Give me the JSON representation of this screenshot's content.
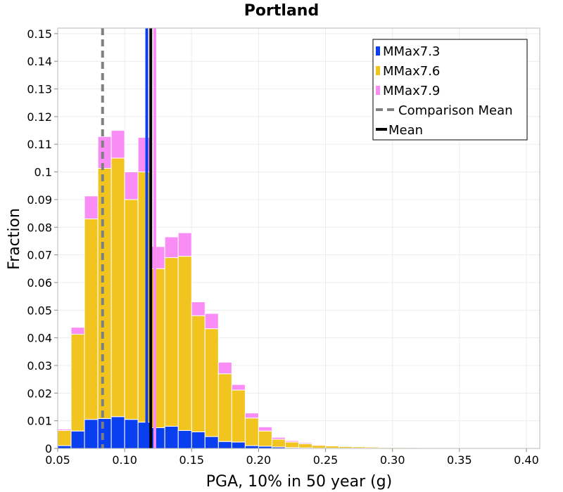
{
  "chart_data": {
    "type": "bar",
    "stacked": true,
    "title": "Portland",
    "xlabel": "PGA, 10% in 50 year (g)",
    "ylabel": "Fraction",
    "xlim": [
      0.05,
      0.41
    ],
    "ylim": [
      0,
      0.152
    ],
    "bin_width": 0.01,
    "x_ticks": [
      0.05,
      0.1,
      0.15,
      0.2,
      0.25,
      0.3,
      0.35,
      0.4
    ],
    "x_tick_labels": [
      "0.05",
      "0.10",
      "0.15",
      "0.20",
      "0.25",
      "0.30",
      "0.35",
      "0.40"
    ],
    "y_ticks": [
      0,
      0.01,
      0.02,
      0.03,
      0.04,
      0.05,
      0.06,
      0.07,
      0.08,
      0.09,
      0.1,
      0.11,
      0.12,
      0.13,
      0.14,
      0.15
    ],
    "y_tick_labels": [
      "0",
      "0.01",
      "0.02",
      "0.03",
      "0.04",
      "0.05",
      "0.06",
      "0.07",
      "0.08",
      "0.09",
      "0.1",
      "0.11",
      "0.12",
      "0.13",
      "0.14",
      "0.15"
    ],
    "grid": true,
    "legend_position": "top-right",
    "bins_x": [
      0.05,
      0.06,
      0.07,
      0.08,
      0.09,
      0.1,
      0.11,
      0.12,
      0.13,
      0.14,
      0.15,
      0.16,
      0.17,
      0.18,
      0.19,
      0.2,
      0.21,
      0.22,
      0.23,
      0.24,
      0.25,
      0.26,
      0.27,
      0.28,
      0.29,
      0.3,
      0.31,
      0.32,
      0.33,
      0.34,
      0.35,
      0.36,
      0.37,
      0.38,
      0.39
    ],
    "series": [
      {
        "name": "MMax7.3",
        "color": "#0a3ff0",
        "values": [
          0.001,
          0.0063,
          0.0105,
          0.0108,
          0.0115,
          0.0105,
          0.0095,
          0.0075,
          0.008,
          0.0065,
          0.006,
          0.0043,
          0.0025,
          0.0023,
          0.001,
          0.0008,
          0.0005,
          0.0003,
          0.0002,
          0.0001,
          0.0001,
          0.0001,
          0.0001,
          0.0001,
          0.0001,
          0.0001,
          0,
          0,
          0,
          0,
          0,
          0,
          0,
          0,
          0
        ]
      },
      {
        "name": "MMax7.6",
        "color": "#f2c41f",
        "values": [
          0.0055,
          0.035,
          0.0725,
          0.0905,
          0.0935,
          0.0795,
          0.0905,
          0.0575,
          0.061,
          0.063,
          0.042,
          0.039,
          0.0245,
          0.0188,
          0.01,
          0.0055,
          0.0028,
          0.002,
          0.0015,
          0.001,
          0.0008,
          0.0006,
          0.0005,
          0.0004,
          0.0003,
          0.0003,
          0.0003,
          0.0002,
          0.0002,
          0,
          0,
          0,
          0.0001,
          0.0001,
          0.0001
        ]
      },
      {
        "name": "MMax7.9",
        "color": "#fa8cf5",
        "values": [
          0.0005,
          0.0025,
          0.0083,
          0.0115,
          0.01,
          0.01,
          0.0125,
          0.008,
          0.0075,
          0.0085,
          0.005,
          0.0055,
          0.0042,
          0.002,
          0.0018,
          0.0015,
          0.0007,
          0.0005,
          0.0004,
          0.0003,
          0.0002,
          0.0002,
          0.0002,
          0.0001,
          0.0001,
          0.0001,
          0.0001,
          0.0001,
          0.0001,
          0.0001,
          0.0001,
          0.0001,
          0.0002,
          0.0001,
          0.0001
        ]
      }
    ],
    "vertical_lines": [
      {
        "name": "Comparison Mean",
        "x": 0.0835,
        "color": "#808080",
        "style": "dashed"
      },
      {
        "name": "MMax7.3 mean",
        "x": 0.1165,
        "color": "#0a3ff0",
        "style": "solid"
      },
      {
        "name": "MMax7.9 mean",
        "x": 0.1225,
        "color": "#fa8cf5",
        "style": "solid"
      },
      {
        "name": "Mean",
        "x": 0.1195,
        "color": "#000000",
        "style": "solid"
      }
    ],
    "legend": [
      {
        "label": "MMax7.3",
        "color": "#0a3ff0",
        "kind": "bar"
      },
      {
        "label": "MMax7.6",
        "color": "#f2c41f",
        "kind": "bar"
      },
      {
        "label": "MMax7.9",
        "color": "#fa8cf5",
        "kind": "bar"
      },
      {
        "label": "Comparison Mean",
        "color": "#808080",
        "kind": "dashed"
      },
      {
        "label": "Mean",
        "color": "#000000",
        "kind": "solid"
      }
    ]
  }
}
